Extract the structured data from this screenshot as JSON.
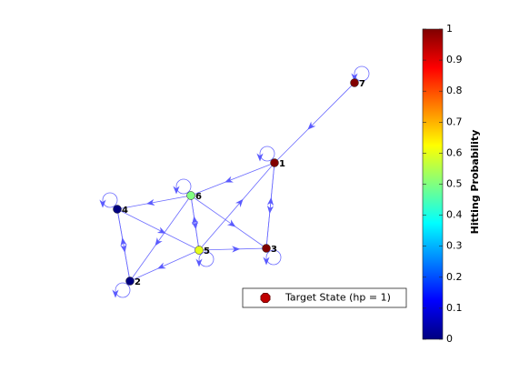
{
  "chart_data": {
    "type": "graph",
    "nodes": [
      {
        "label": "1",
        "value": 1
      },
      {
        "label": "2",
        "value": 0
      },
      {
        "label": "3",
        "value": 1
      },
      {
        "label": "4",
        "value": 0
      },
      {
        "label": "5",
        "value": 0.6
      },
      {
        "label": "6",
        "value": 0.5
      },
      {
        "label": "7",
        "value": 1
      }
    ],
    "colorbar": {
      "label": "Hitting Probability",
      "lim": [
        0,
        1
      ],
      "ticks": [
        0,
        0.1,
        0.2,
        0.3,
        0.4,
        0.5,
        0.6,
        0.7,
        0.8,
        0.9,
        1
      ],
      "colormap": "jet"
    },
    "legend": {
      "label": "Target State (hp = 1)",
      "color": "#c00000"
    }
  }
}
